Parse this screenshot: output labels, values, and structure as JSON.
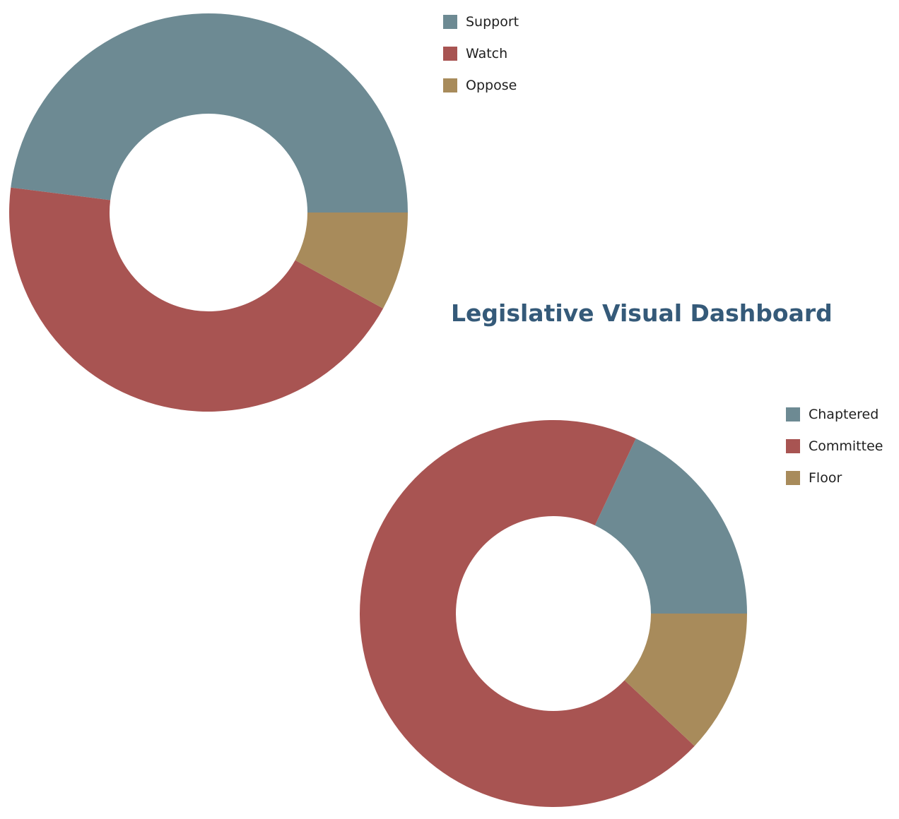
{
  "dashboard": {
    "title": "Legislative Visual Dashboard"
  },
  "chart_data": [
    {
      "type": "pie",
      "variant": "donut",
      "title": "",
      "series": [
        {
          "name": "Support",
          "value": 48,
          "color": "#6d8a93"
        },
        {
          "name": "Watch",
          "value": 44,
          "color": "#a85452"
        },
        {
          "name": "Oppose",
          "value": 8,
          "color": "#a88b5b"
        }
      ],
      "legend": "top-right"
    },
    {
      "type": "pie",
      "variant": "donut",
      "title": "",
      "series": [
        {
          "name": "Chaptered",
          "value": 18,
          "color": "#6d8a93"
        },
        {
          "name": "Committee",
          "value": 70,
          "color": "#a85452"
        },
        {
          "name": "Floor",
          "value": 12,
          "color": "#a88b5b"
        }
      ],
      "legend": "top-right"
    }
  ]
}
